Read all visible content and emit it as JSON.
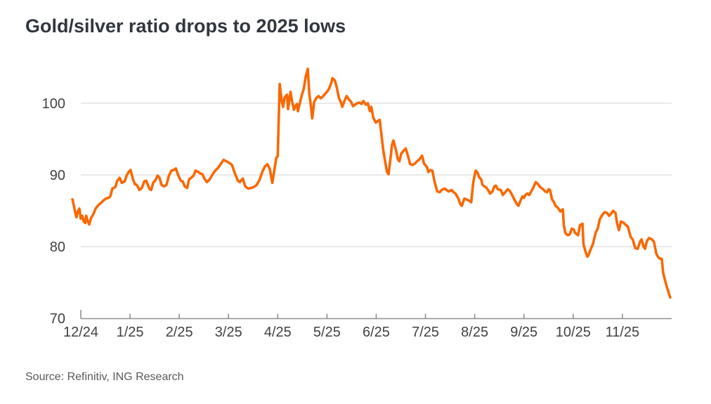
{
  "title": "Gold/silver ratio drops to 2025 lows",
  "source": "Source: Refinitiv, ING Research",
  "colors": {
    "line": "#f96802",
    "title": "#32363f",
    "axis_label": "#414141",
    "axis_line": "#8f8f8f",
    "gridline": "#e3e3e3",
    "source_text": "#595959",
    "background": "#ffffff"
  },
  "chart_data": {
    "type": "line",
    "title": "Gold/silver ratio drops to 2025 lows",
    "xlabel": "",
    "ylabel": "",
    "legend": "none",
    "grid": "horizontal-only",
    "y_ticks": [
      70,
      80,
      90,
      100
    ],
    "ylim": [
      70,
      107
    ],
    "x_tick_labels": [
      "12/24",
      "1/25",
      "2/25",
      "3/25",
      "4/25",
      "5/25",
      "6/25",
      "7/25",
      "8/25",
      "9/25",
      "10/25",
      "11/25"
    ],
    "x_axis_note": "x values below are fractional months after the 12/24 tick (0 = Dec 2024, 11 = Nov 2025)",
    "xlim_months": [
      -0.17,
      12.0
    ],
    "series": [
      {
        "name": "Gold/silver ratio",
        "color": "#f96802",
        "points": [
          [
            -0.17,
            86.6
          ],
          [
            -0.14,
            85.7
          ],
          [
            -0.11,
            84.7
          ],
          [
            -0.09,
            84.1
          ],
          [
            -0.06,
            84.9
          ],
          [
            -0.03,
            85.3
          ],
          [
            0,
            83.9
          ],
          [
            0.03,
            84.3
          ],
          [
            0.06,
            83.5
          ],
          [
            0.09,
            83.3
          ],
          [
            0.11,
            84.3
          ],
          [
            0.14,
            83.6
          ],
          [
            0.17,
            83.1
          ],
          [
            0.21,
            84
          ],
          [
            0.26,
            84.6
          ],
          [
            0.3,
            85.3
          ],
          [
            0.36,
            85.8
          ],
          [
            0.41,
            86.1
          ],
          [
            0.47,
            86.5
          ],
          [
            0.51,
            86.7
          ],
          [
            0.56,
            86.8
          ],
          [
            0.6,
            87
          ],
          [
            0.64,
            88.1
          ],
          [
            0.7,
            88.3
          ],
          [
            0.74,
            89.2
          ],
          [
            0.79,
            89.6
          ],
          [
            0.83,
            88.9
          ],
          [
            0.89,
            89.1
          ],
          [
            0.93,
            89.9
          ],
          [
            0.97,
            90.4
          ],
          [
            1.01,
            90.7
          ],
          [
            1.06,
            89.4
          ],
          [
            1.1,
            88.7
          ],
          [
            1.14,
            88.6
          ],
          [
            1.19,
            87.9
          ],
          [
            1.24,
            88.2
          ],
          [
            1.29,
            89.1
          ],
          [
            1.33,
            89.2
          ],
          [
            1.39,
            88.1
          ],
          [
            1.43,
            87.9
          ],
          [
            1.47,
            88.9
          ],
          [
            1.51,
            89.2
          ],
          [
            1.56,
            89.9
          ],
          [
            1.6,
            89.6
          ],
          [
            1.64,
            88.6
          ],
          [
            1.69,
            88.4
          ],
          [
            1.74,
            88.6
          ],
          [
            1.79,
            89.9
          ],
          [
            1.84,
            90.6
          ],
          [
            1.89,
            90.7
          ],
          [
            1.93,
            90.9
          ],
          [
            1.97,
            90.1
          ],
          [
            2.03,
            89.2
          ],
          [
            2.07,
            89.1
          ],
          [
            2.11,
            88.4
          ],
          [
            2.16,
            88.2
          ],
          [
            2.2,
            89.4
          ],
          [
            2.24,
            89.6
          ],
          [
            2.29,
            89.9
          ],
          [
            2.33,
            90.6
          ],
          [
            2.39,
            90.4
          ],
          [
            2.43,
            90.2
          ],
          [
            2.47,
            90.1
          ],
          [
            2.51,
            89.5
          ],
          [
            2.56,
            89
          ],
          [
            2.61,
            89.3
          ],
          [
            2.67,
            90
          ],
          [
            2.73,
            90.6
          ],
          [
            2.79,
            91
          ],
          [
            2.84,
            91.5
          ],
          [
            2.9,
            92.1
          ],
          [
            2.96,
            91.9
          ],
          [
            3.01,
            91.7
          ],
          [
            3.07,
            91.4
          ],
          [
            3.13,
            90.2
          ],
          [
            3.19,
            89.2
          ],
          [
            3.23,
            89
          ],
          [
            3.29,
            89.5
          ],
          [
            3.34,
            88.4
          ],
          [
            3.4,
            88.1
          ],
          [
            3.46,
            88.2
          ],
          [
            3.51,
            88.3
          ],
          [
            3.57,
            88.6
          ],
          [
            3.63,
            89.3
          ],
          [
            3.69,
            90.5
          ],
          [
            3.74,
            91.2
          ],
          [
            3.79,
            91.5
          ],
          [
            3.84,
            90.8
          ],
          [
            3.89,
            88.9
          ],
          [
            3.93,
            90.6
          ],
          [
            3.97,
            92.4
          ],
          [
            4,
            92.6
          ],
          [
            4.04,
            102.7
          ],
          [
            4.08,
            100.4
          ],
          [
            4.11,
            99.5
          ],
          [
            4.14,
            100.8
          ],
          [
            4.19,
            101.2
          ],
          [
            4.21,
            99.2
          ],
          [
            4.26,
            101.6
          ],
          [
            4.29,
            100.3
          ],
          [
            4.33,
            99.1
          ],
          [
            4.36,
            99.6
          ],
          [
            4.39,
            99.9
          ],
          [
            4.41,
            98.9
          ],
          [
            4.44,
            99.8
          ],
          [
            4.48,
            100.9
          ],
          [
            4.53,
            102.1
          ],
          [
            4.57,
            103.8
          ],
          [
            4.61,
            104.8
          ],
          [
            4.64,
            101.4
          ],
          [
            4.67,
            99.8
          ],
          [
            4.7,
            97.9
          ],
          [
            4.74,
            100.2
          ],
          [
            4.79,
            100.8
          ],
          [
            4.83,
            101
          ],
          [
            4.87,
            100.7
          ],
          [
            4.91,
            100.9
          ],
          [
            4.96,
            101.3
          ],
          [
            5,
            101.6
          ],
          [
            5.04,
            102
          ],
          [
            5.09,
            102.9
          ],
          [
            5.11,
            103.5
          ],
          [
            5.16,
            103.2
          ],
          [
            5.2,
            102.2
          ],
          [
            5.24,
            100.8
          ],
          [
            5.29,
            100
          ],
          [
            5.31,
            99.5
          ],
          [
            5.36,
            100.4
          ],
          [
            5.4,
            101
          ],
          [
            5.44,
            100.6
          ],
          [
            5.49,
            100.2
          ],
          [
            5.53,
            99.6
          ],
          [
            5.57,
            99.8
          ],
          [
            5.61,
            100
          ],
          [
            5.66,
            100.1
          ],
          [
            5.7,
            99.9
          ],
          [
            5.74,
            100.3
          ],
          [
            5.79,
            99.8
          ],
          [
            5.83,
            100
          ],
          [
            5.87,
            98.9
          ],
          [
            5.9,
            99.5
          ],
          [
            5.94,
            98
          ],
          [
            5.99,
            97.3
          ],
          [
            6.03,
            97.5
          ],
          [
            6.07,
            97.7
          ],
          [
            6.1,
            96
          ],
          [
            6.14,
            93.6
          ],
          [
            6.18,
            91.9
          ],
          [
            6.22,
            90.4
          ],
          [
            6.25,
            90.1
          ],
          [
            6.29,
            92.3
          ],
          [
            6.32,
            94.2
          ],
          [
            6.35,
            94.8
          ],
          [
            6.4,
            93.5
          ],
          [
            6.44,
            92.2
          ],
          [
            6.47,
            91.9
          ],
          [
            6.51,
            93
          ],
          [
            6.56,
            93.4
          ],
          [
            6.6,
            93.7
          ],
          [
            6.64,
            92.8
          ],
          [
            6.69,
            91.5
          ],
          [
            6.74,
            91.4
          ],
          [
            6.79,
            91.6
          ],
          [
            6.83,
            91.9
          ],
          [
            6.88,
            92.2
          ],
          [
            6.93,
            92.7
          ],
          [
            6.97,
            91.6
          ],
          [
            7.03,
            91.1
          ],
          [
            7.06,
            90.4
          ],
          [
            7.1,
            90.7
          ],
          [
            7.14,
            90.6
          ],
          [
            7.19,
            88.9
          ],
          [
            7.24,
            87.7
          ],
          [
            7.29,
            87.6
          ],
          [
            7.33,
            87.9
          ],
          [
            7.39,
            88.1
          ],
          [
            7.43,
            87.9
          ],
          [
            7.47,
            87.7
          ],
          [
            7.53,
            87.9
          ],
          [
            7.57,
            87.6
          ],
          [
            7.61,
            87.4
          ],
          [
            7.67,
            86.7
          ],
          [
            7.71,
            85.9
          ],
          [
            7.74,
            85.7
          ],
          [
            7.79,
            86.7
          ],
          [
            7.83,
            86.6
          ],
          [
            7.89,
            86.4
          ],
          [
            7.93,
            86.2
          ],
          [
            7.97,
            88.9
          ],
          [
            8.02,
            90.6
          ],
          [
            8.06,
            90.3
          ],
          [
            8.09,
            89.7
          ],
          [
            8.13,
            89.4
          ],
          [
            8.16,
            88.6
          ],
          [
            8.2,
            88.4
          ],
          [
            8.24,
            88.2
          ],
          [
            8.29,
            87.7
          ],
          [
            8.31,
            87.4
          ],
          [
            8.36,
            87.7
          ],
          [
            8.4,
            88.4
          ],
          [
            8.43,
            88.5
          ],
          [
            8.47,
            88
          ],
          [
            8.53,
            87.9
          ],
          [
            8.57,
            87.2
          ],
          [
            8.61,
            87.5
          ],
          [
            8.67,
            88
          ],
          [
            8.71,
            87.8
          ],
          [
            8.76,
            87.2
          ],
          [
            8.81,
            86.5
          ],
          [
            8.86,
            85.9
          ],
          [
            8.89,
            85.7
          ],
          [
            8.93,
            86.4
          ],
          [
            8.97,
            87
          ],
          [
            9,
            86.8
          ],
          [
            9.03,
            87.2
          ],
          [
            9.07,
            87.4
          ],
          [
            9.11,
            87.2
          ],
          [
            9.14,
            87.6
          ],
          [
            9.19,
            88.2
          ],
          [
            9.24,
            89
          ],
          [
            9.29,
            88.7
          ],
          [
            9.33,
            88.3
          ],
          [
            9.39,
            88
          ],
          [
            9.43,
            87.7
          ],
          [
            9.47,
            87.6
          ],
          [
            9.5,
            88
          ],
          [
            9.53,
            87.9
          ],
          [
            9.57,
            86.6
          ],
          [
            9.61,
            86.2
          ],
          [
            9.64,
            85.7
          ],
          [
            9.69,
            85.4
          ],
          [
            9.74,
            84.9
          ],
          [
            9.79,
            85.2
          ],
          [
            9.81,
            83
          ],
          [
            9.84,
            81.9
          ],
          [
            9.89,
            81.6
          ],
          [
            9.93,
            81.7
          ],
          [
            9.97,
            82.5
          ],
          [
            10.01,
            82.4
          ],
          [
            10.04,
            81.9
          ],
          [
            10.1,
            81.6
          ],
          [
            10.14,
            83
          ],
          [
            10.19,
            83.2
          ],
          [
            10.21,
            80.3
          ],
          [
            10.26,
            79.1
          ],
          [
            10.29,
            78.6
          ],
          [
            10.31,
            78.8
          ],
          [
            10.36,
            79.7
          ],
          [
            10.4,
            80.3
          ],
          [
            10.46,
            82
          ],
          [
            10.5,
            82.5
          ],
          [
            10.54,
            83.8
          ],
          [
            10.6,
            84.5
          ],
          [
            10.64,
            84.8
          ],
          [
            10.69,
            84.7
          ],
          [
            10.73,
            84.3
          ],
          [
            10.76,
            84.5
          ],
          [
            10.81,
            85
          ],
          [
            10.86,
            84.7
          ],
          [
            10.89,
            83.3
          ],
          [
            10.93,
            82.3
          ],
          [
            10.97,
            83.5
          ],
          [
            11.03,
            83.3
          ],
          [
            11.07,
            83
          ],
          [
            11.11,
            82.8
          ],
          [
            11.17,
            81.3
          ],
          [
            11.21,
            81
          ],
          [
            11.26,
            79.8
          ],
          [
            11.31,
            79.7
          ],
          [
            11.36,
            80.7
          ],
          [
            11.39,
            81
          ],
          [
            11.43,
            80
          ],
          [
            11.46,
            79.7
          ],
          [
            11.5,
            80.8
          ],
          [
            11.54,
            81.2
          ],
          [
            11.6,
            81
          ],
          [
            11.64,
            80.7
          ],
          [
            11.69,
            79
          ],
          [
            11.73,
            78.5
          ],
          [
            11.77,
            78.3
          ],
          [
            11.8,
            78.3
          ],
          [
            11.83,
            76.3
          ],
          [
            11.86,
            75.5
          ],
          [
            11.9,
            74.4
          ],
          [
            11.93,
            73.8
          ],
          [
            11.95,
            73.3
          ],
          [
            11.97,
            72.9
          ]
        ]
      }
    ]
  }
}
